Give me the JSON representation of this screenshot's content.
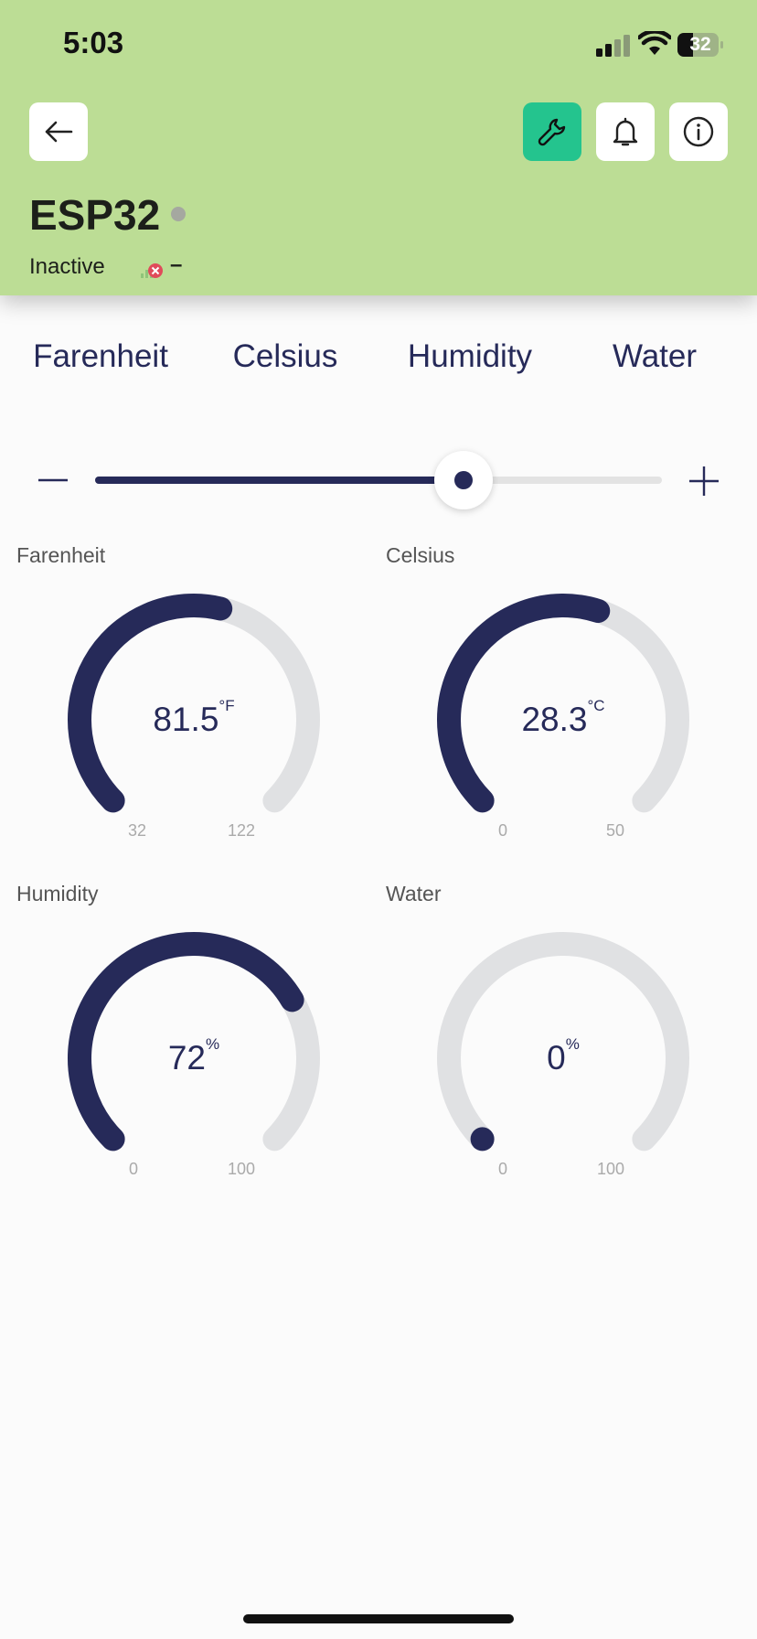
{
  "status_bar": {
    "time": "5:03",
    "battery": "32"
  },
  "header": {
    "icons": [
      "back-arrow-icon",
      "wrench-icon",
      "bell-icon",
      "info-icon"
    ],
    "device_name": "ESP32",
    "device_status": "Inactive",
    "signal_text": "–",
    "accent": "#24c48e",
    "background": "#bcdd95"
  },
  "tabs": [
    "Farenheit",
    "Celsius",
    "Humidity",
    "Water"
  ],
  "slider": {
    "value": 0.65
  },
  "gauges": [
    {
      "label": "Farenheit",
      "value": "81.5",
      "unit": "°F",
      "min": "32",
      "max": "122",
      "fraction": 0.55
    },
    {
      "label": "Celsius",
      "value": "28.3",
      "unit": "°C",
      "min": "0",
      "max": "50",
      "fraction": 0.566
    },
    {
      "label": "Humidity",
      "value": "72",
      "unit": "%",
      "min": "0",
      "max": "100",
      "fraction": 0.72
    },
    {
      "label": "Water",
      "value": "0",
      "unit": "%",
      "min": "0",
      "max": "100",
      "fraction": 0.0
    }
  ],
  "colors": {
    "primary": "#262a59",
    "track": "#e0e1e3"
  }
}
